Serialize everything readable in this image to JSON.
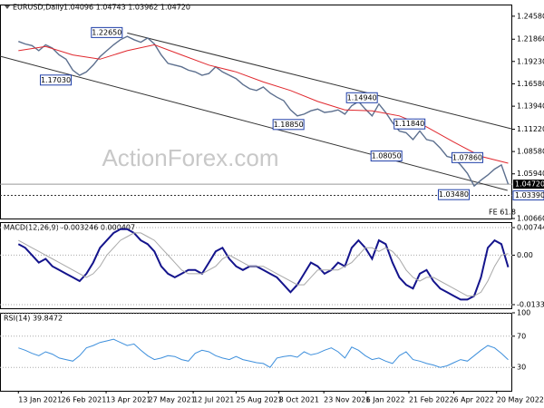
{
  "chart_data": [
    {
      "type": "line",
      "title": "EURUSD,Daily",
      "ohlc_label": "1.04096 1.04743 1.03962 1.04720",
      "watermark": "ActionForex.com",
      "xlim": [
        -2.7,
        72.6
      ],
      "ylim": [
        1.0066,
        1.2596
      ],
      "yticks": [
        {
          "value": 1.2458,
          "label": "1.24580"
        },
        {
          "value": 1.2186,
          "label": "1.21860"
        },
        {
          "value": 1.1923,
          "label": "1.19230"
        },
        {
          "value": 1.1658,
          "label": "1.16580"
        },
        {
          "value": 1.1394,
          "label": "1.13940"
        },
        {
          "value": 1.1122,
          "label": "1.11220"
        },
        {
          "value": 1.0858,
          "label": "1.08580"
        },
        {
          "value": 1.0594,
          "label": "1.05940"
        },
        {
          "value": 1.0066,
          "label": "1.00660"
        }
      ],
      "current_price": {
        "value": 1.0472,
        "label": "1.04720"
      },
      "level": {
        "value": 1.0339,
        "label": "1.03390"
      },
      "fe_label": "FE 61.8",
      "series": [
        {
          "name": "EURUSD",
          "color": "#5c6f8e",
          "x": [
            0,
            1,
            2,
            3,
            4,
            5,
            6,
            7,
            8,
            9,
            10,
            11,
            12,
            13,
            14,
            15,
            16,
            17,
            18,
            19,
            20,
            21,
            22,
            23,
            24,
            25,
            26,
            27,
            28,
            29,
            30,
            31,
            32,
            33,
            34,
            35,
            36,
            37,
            38,
            39,
            40,
            41,
            42,
            43,
            44,
            45,
            46,
            47,
            48,
            49,
            50,
            51,
            52,
            53,
            54,
            55,
            56,
            57,
            58,
            59,
            60,
            61,
            62,
            63,
            64,
            65,
            66,
            67,
            68,
            69,
            70,
            71,
            72
          ],
          "values": [
            1.216,
            1.213,
            1.211,
            1.205,
            1.212,
            1.208,
            1.2,
            1.195,
            1.182,
            1.176,
            1.18,
            1.188,
            1.198,
            1.205,
            1.212,
            1.218,
            1.222,
            1.218,
            1.215,
            1.22,
            1.213,
            1.2,
            1.19,
            1.188,
            1.186,
            1.182,
            1.18,
            1.176,
            1.178,
            1.186,
            1.18,
            1.176,
            1.172,
            1.165,
            1.16,
            1.158,
            1.162,
            1.155,
            1.15,
            1.146,
            1.135,
            1.128,
            1.13,
            1.134,
            1.136,
            1.132,
            1.133,
            1.135,
            1.13,
            1.14,
            1.145,
            1.136,
            1.128,
            1.142,
            1.132,
            1.12,
            1.11,
            1.108,
            1.1,
            1.11,
            1.1,
            1.098,
            1.09,
            1.08,
            1.078,
            1.07,
            1.06,
            1.045,
            1.052,
            1.058,
            1.065,
            1.07,
            1.0472
          ]
        },
        {
          "name": "MA",
          "color": "#e0282e",
          "x": [
            0,
            4,
            8,
            12,
            16,
            20,
            24,
            28,
            32,
            36,
            40,
            44,
            48,
            52,
            56,
            60,
            64,
            68,
            72
          ],
          "values": [
            1.205,
            1.21,
            1.2,
            1.195,
            1.205,
            1.212,
            1.2,
            1.188,
            1.18,
            1.168,
            1.158,
            1.145,
            1.135,
            1.134,
            1.128,
            1.115,
            1.097,
            1.08,
            1.072
          ]
        }
      ],
      "trendlines": [
        {
          "x": [
            16,
            72.6
          ],
          "values": [
            1.226,
            1.1125
          ]
        },
        {
          "x": [
            -2.7,
            71.9
          ],
          "values": [
            1.1985,
            1.0398
          ]
        }
      ],
      "annotations": [
        {
          "x": 13.0,
          "value": 1.2265,
          "label": "1.22650"
        },
        {
          "x": 5.5,
          "value": 1.1703,
          "label": "1.17030"
        },
        {
          "x": 39.7,
          "value": 1.1885,
          "label": "1.18850"
        },
        {
          "x": 50.5,
          "value": 1.1494,
          "label": "1.14940"
        },
        {
          "x": 57.5,
          "value": 1.1184,
          "label": "1.11840"
        },
        {
          "x": 54.1,
          "value": 1.0805,
          "label": "1.08050"
        },
        {
          "x": 66.0,
          "value": 1.0786,
          "label": "1.07860"
        },
        {
          "x": 64.0,
          "value": 1.0348,
          "label": "1.03480"
        }
      ]
    },
    {
      "type": "line",
      "title": "MACD(12,26,9) -0.003246 0.000407",
      "xlim": [
        -2.7,
        72.6
      ],
      "ylim": [
        -0.01434,
        0.00892
      ],
      "yticks": [
        0.007446,
        {
          "value": 0,
          "label": "0.00"
        },
        -0.013359
      ],
      "series": [
        {
          "name": "MACD",
          "color": "#14148c",
          "x": [
            0,
            1,
            2,
            3,
            4,
            5,
            6,
            7,
            8,
            9,
            10,
            11,
            12,
            13,
            14,
            15,
            16,
            17,
            18,
            19,
            20,
            21,
            22,
            23,
            24,
            25,
            26,
            27,
            28,
            29,
            30,
            31,
            32,
            33,
            34,
            35,
            36,
            37,
            38,
            39,
            40,
            41,
            42,
            43,
            44,
            45,
            46,
            47,
            48,
            49,
            50,
            51,
            52,
            53,
            54,
            55,
            56,
            57,
            58,
            59,
            60,
            61,
            62,
            63,
            64,
            65,
            66,
            67,
            68,
            69,
            70,
            71,
            72
          ],
          "values": [
            0.003,
            0.002,
            0.0,
            -0.002,
            -0.001,
            -0.003,
            -0.004,
            -0.005,
            -0.006,
            -0.007,
            -0.005,
            -0.002,
            0.002,
            0.004,
            0.006,
            0.007,
            0.007,
            0.006,
            0.004,
            0.003,
            0.001,
            -0.003,
            -0.005,
            -0.006,
            -0.005,
            -0.004,
            -0.004,
            -0.005,
            -0.002,
            0.001,
            0.002,
            -0.001,
            -0.003,
            -0.004,
            -0.003,
            -0.003,
            -0.004,
            -0.005,
            -0.006,
            -0.008,
            -0.01,
            -0.008,
            -0.005,
            -0.002,
            -0.003,
            -0.005,
            -0.004,
            -0.002,
            -0.003,
            0.002,
            0.004,
            0.002,
            -0.001,
            0.004,
            0.003,
            -0.002,
            -0.006,
            -0.008,
            -0.009,
            -0.005,
            -0.004,
            -0.007,
            -0.009,
            -0.01,
            -0.011,
            -0.012,
            -0.012,
            -0.011,
            -0.006,
            0.002,
            0.004,
            0.003,
            -0.003246
          ]
        },
        {
          "name": "Signal",
          "color": "#a8a8a8",
          "x": [
            0,
            1,
            2,
            3,
            4,
            5,
            6,
            7,
            8,
            9,
            10,
            11,
            12,
            13,
            14,
            15,
            16,
            17,
            18,
            19,
            20,
            21,
            22,
            23,
            24,
            25,
            26,
            27,
            28,
            29,
            30,
            31,
            32,
            33,
            34,
            35,
            36,
            37,
            38,
            39,
            40,
            41,
            42,
            43,
            44,
            45,
            46,
            47,
            48,
            49,
            50,
            51,
            52,
            53,
            54,
            55,
            56,
            57,
            58,
            59,
            60,
            61,
            62,
            63,
            64,
            65,
            66,
            67,
            68,
            69,
            70,
            71,
            72
          ],
          "values": [
            0.004,
            0.003,
            0.002,
            0.001,
            0.0,
            -0.001,
            -0.002,
            -0.003,
            -0.004,
            -0.005,
            -0.006,
            -0.005,
            -0.003,
            0.0,
            0.002,
            0.004,
            0.005,
            0.006,
            0.006,
            0.005,
            0.004,
            0.002,
            0.0,
            -0.002,
            -0.004,
            -0.005,
            -0.005,
            -0.005,
            -0.004,
            -0.003,
            -0.001,
            0.0,
            -0.001,
            -0.002,
            -0.003,
            -0.003,
            -0.003,
            -0.004,
            -0.005,
            -0.006,
            -0.007,
            -0.008,
            -0.008,
            -0.006,
            -0.004,
            -0.004,
            -0.004,
            -0.004,
            -0.003,
            -0.002,
            0.0,
            0.002,
            0.002,
            0.001,
            0.002,
            0.001,
            -0.001,
            -0.004,
            -0.006,
            -0.007,
            -0.006,
            -0.006,
            -0.007,
            -0.008,
            -0.009,
            -0.01,
            -0.011,
            -0.011,
            -0.01,
            -0.007,
            -0.003,
            0.0,
            0.000407
          ]
        }
      ]
    },
    {
      "type": "line",
      "title": "RSI(14) 39.8472",
      "xlim": [
        -2.7,
        72.6
      ],
      "ylim": [
        0,
        100
      ],
      "yticks": [
        100,
        70,
        30
      ],
      "xticks": [
        {
          "value": 0,
          "label": "13 Jan 2021"
        },
        {
          "value": 6.3,
          "label": "26 Feb 2021"
        },
        {
          "value": 12.9,
          "label": "13 Apr 2021"
        },
        {
          "value": 19.1,
          "label": "27 May 2021"
        },
        {
          "value": 25.7,
          "label": "12 Jul 2021"
        },
        {
          "value": 32,
          "label": "25 Aug 2021"
        },
        {
          "value": 38.3,
          "label": "8 Oct 2021"
        },
        {
          "value": 44.9,
          "label": "23 Nov 2021"
        },
        {
          "value": 51.1,
          "label": "6 Jan 2022"
        },
        {
          "value": 57.4,
          "label": "21 Feb 2022"
        },
        {
          "value": 64,
          "label": "6 Apr 2022"
        },
        {
          "value": 70.3,
          "label": "20 May 2022"
        }
      ],
      "series": [
        {
          "name": "RSI",
          "color": "#3d8fdc",
          "x": [
            0,
            1,
            2,
            3,
            4,
            5,
            6,
            7,
            8,
            9,
            10,
            11,
            12,
            13,
            14,
            15,
            16,
            17,
            18,
            19,
            20,
            21,
            22,
            23,
            24,
            25,
            26,
            27,
            28,
            29,
            30,
            31,
            32,
            33,
            34,
            35,
            36,
            37,
            38,
            39,
            40,
            41,
            42,
            43,
            44,
            45,
            46,
            47,
            48,
            49,
            50,
            51,
            52,
            53,
            54,
            55,
            56,
            57,
            58,
            59,
            60,
            61,
            62,
            63,
            64,
            65,
            66,
            67,
            68,
            69,
            70,
            71,
            72
          ],
          "values": [
            55,
            52,
            48,
            45,
            50,
            47,
            42,
            40,
            38,
            45,
            55,
            58,
            62,
            64,
            66,
            62,
            58,
            60,
            52,
            45,
            40,
            42,
            45,
            44,
            40,
            38,
            48,
            52,
            50,
            45,
            42,
            40,
            44,
            40,
            38,
            36,
            35,
            30,
            42,
            44,
            45,
            43,
            50,
            46,
            48,
            52,
            55,
            50,
            42,
            56,
            52,
            45,
            40,
            42,
            38,
            35,
            45,
            50,
            40,
            38,
            35,
            33,
            30,
            32,
            36,
            40,
            38,
            45,
            52,
            58,
            55,
            48,
            39.8472
          ]
        }
      ]
    }
  ]
}
